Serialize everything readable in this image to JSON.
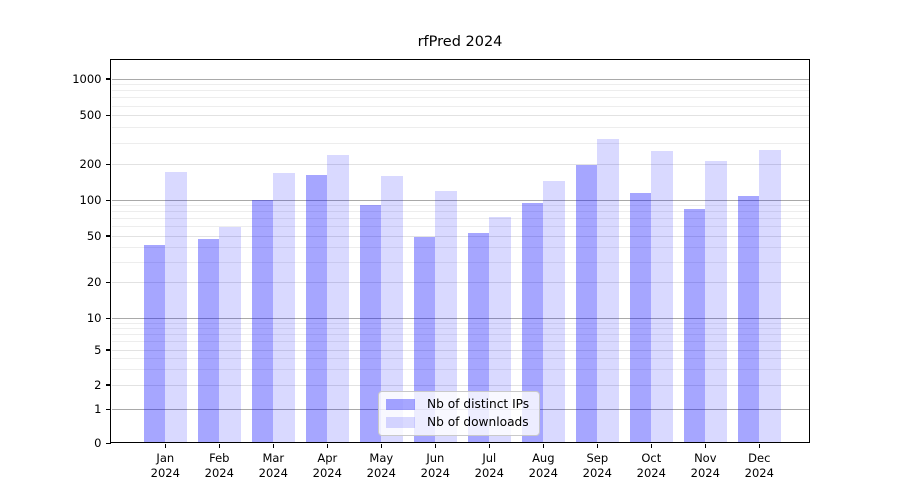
{
  "chart_data": {
    "type": "bar",
    "title": "rfPred 2024",
    "categories": [
      "Jan 2024",
      "Feb 2024",
      "Mar 2024",
      "Apr 2024",
      "May 2024",
      "Jun 2024",
      "Jul 2024",
      "Aug 2024",
      "Sep 2024",
      "Oct 2024",
      "Nov 2024",
      "Dec 2024"
    ],
    "series": [
      {
        "name": "Nb of distinct IPs",
        "color": "#0000ff",
        "alpha": 0.35,
        "values": [
          42,
          47,
          100,
          165,
          91,
          49,
          53,
          95,
          200,
          115,
          85,
          108
        ]
      },
      {
        "name": "Nb of downloads",
        "color": "#0000ff",
        "alpha": 0.15,
        "values": [
          175,
          60,
          170,
          240,
          160,
          120,
          72,
          145,
          325,
          260,
          215,
          265
        ]
      }
    ],
    "y_ticks": [
      0,
      1,
      2,
      5,
      10,
      20,
      50,
      100,
      200,
      500,
      1000
    ],
    "y_major_gridlines": [
      1,
      10,
      100,
      1000
    ],
    "y_minor_labeled_gridlines": [
      2,
      5,
      20,
      50,
      200,
      500
    ],
    "y_minor_gridlines": [
      3,
      4,
      6,
      7,
      8,
      9,
      30,
      40,
      60,
      70,
      80,
      90,
      300,
      400,
      600,
      700,
      800,
      900
    ],
    "y_scale": "symlog",
    "ylim": [
      0,
      1400
    ],
    "xlabel": "",
    "ylabel": "",
    "grid": true,
    "legend_position": "lower center",
    "colors": {
      "bars_base": "#0000ff",
      "grid_major": "#a9a9a9",
      "grid_minor": "#ededed",
      "spine": "#000000",
      "text": "#000000"
    }
  }
}
